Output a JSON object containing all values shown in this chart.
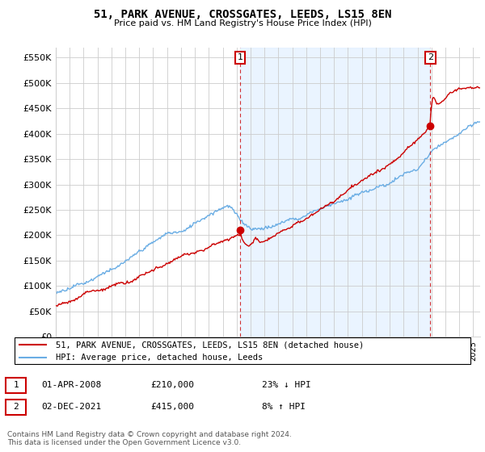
{
  "title": "51, PARK AVENUE, CROSSGATES, LEEDS, LS15 8EN",
  "subtitle": "Price paid vs. HM Land Registry's House Price Index (HPI)",
  "legend_line1": "51, PARK AVENUE, CROSSGATES, LEEDS, LS15 8EN (detached house)",
  "legend_line2": "HPI: Average price, detached house, Leeds",
  "annotation1_label": "1",
  "annotation1_date": "01-APR-2008",
  "annotation1_price": "£210,000",
  "annotation1_hpi": "23% ↓ HPI",
  "annotation2_label": "2",
  "annotation2_date": "02-DEC-2021",
  "annotation2_price": "£415,000",
  "annotation2_hpi": "8% ↑ HPI",
  "footer": "Contains HM Land Registry data © Crown copyright and database right 2024.\nThis data is licensed under the Open Government Licence v3.0.",
  "hpi_color": "#6aade4",
  "hpi_fill_color": "#ddeeff",
  "sale_color": "#cc0000",
  "vline_color": "#cc0000",
  "marker_color": "#cc0000",
  "ylim": [
    0,
    570000
  ],
  "yticks": [
    0,
    50000,
    100000,
    150000,
    200000,
    250000,
    300000,
    350000,
    400000,
    450000,
    500000,
    550000
  ],
  "sale1_x": 2008.25,
  "sale1_y": 210000,
  "sale2_x": 2021.917,
  "sale2_y": 415000,
  "xmin": 1995,
  "xmax": 2025.5
}
